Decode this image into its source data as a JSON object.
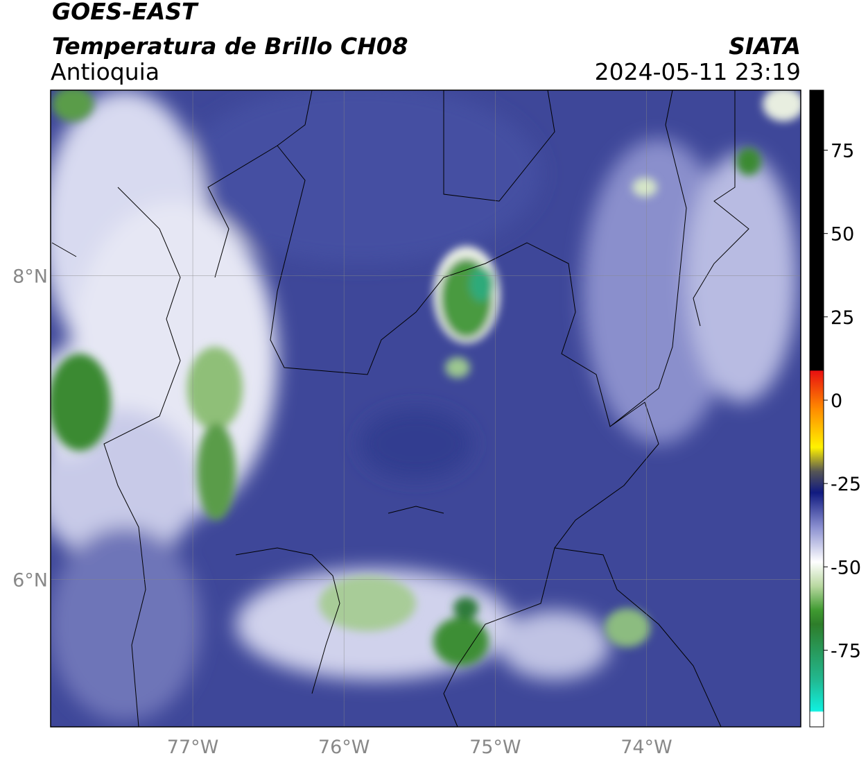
{
  "header": {
    "title": "GOES-EAST",
    "subtitle": "Temperatura de Brillo CH08",
    "region": "Antioquia",
    "source": "SIATA",
    "datetime": "2024-05-11 23:19"
  },
  "map": {
    "xlim": [
      -77.94,
      -72.98
    ],
    "ylim": [
      5.03,
      9.22
    ],
    "xticks": [
      {
        "value": -77,
        "label": "77°W"
      },
      {
        "value": -76,
        "label": "76°W"
      },
      {
        "value": -75,
        "label": "75°W"
      },
      {
        "value": -74,
        "label": "74°W"
      }
    ],
    "yticks": [
      {
        "value": 8,
        "label": "8°N"
      },
      {
        "value": 6,
        "label": "6°N"
      }
    ]
  },
  "colorbar": {
    "lim": [
      -98,
      93
    ],
    "ticks": [
      75,
      50,
      25,
      0,
      -25,
      -50,
      -75
    ]
  }
}
